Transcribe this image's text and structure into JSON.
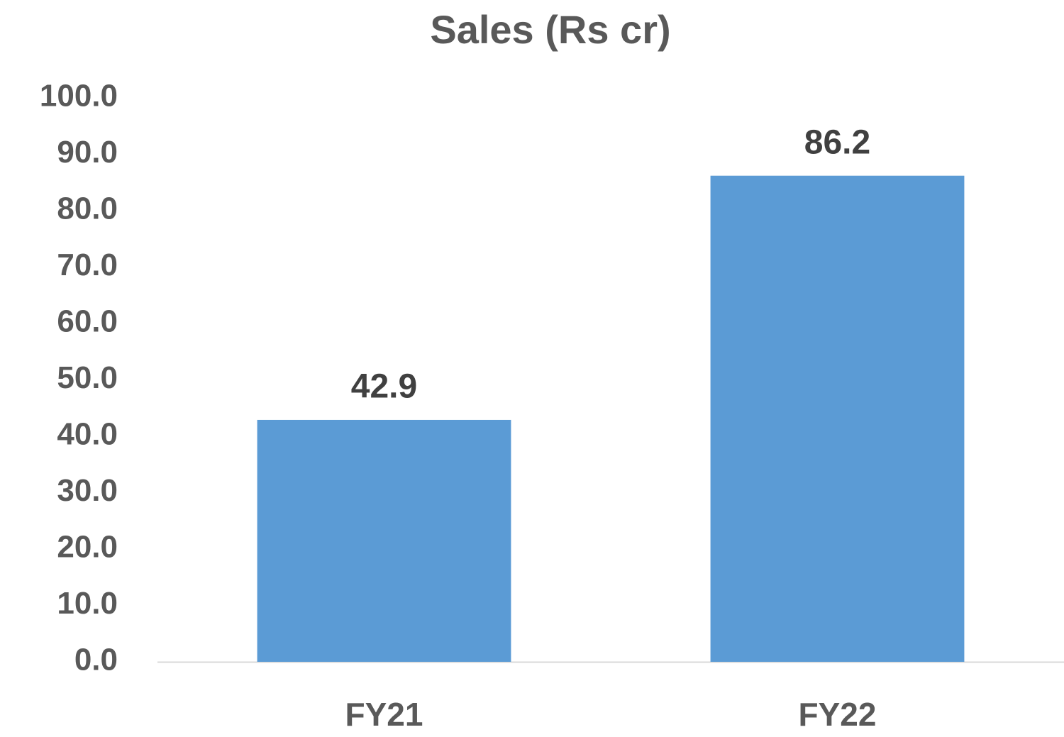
{
  "chart_data": {
    "type": "bar",
    "title": "Sales (Rs cr)",
    "categories": [
      "FY21",
      "FY22"
    ],
    "values": [
      42.9,
      86.2
    ],
    "color": "#5b9bd5",
    "ylim": [
      0,
      100
    ],
    "yticks": [
      {
        "value": 0,
        "label": "0.0"
      },
      {
        "value": 10,
        "label": "10.0"
      },
      {
        "value": 20,
        "label": "20.0"
      },
      {
        "value": 30,
        "label": "30.0"
      },
      {
        "value": 40,
        "label": "40.0"
      },
      {
        "value": 50,
        "label": "50.0"
      },
      {
        "value": 60,
        "label": "60.0"
      },
      {
        "value": 70,
        "label": "70.0"
      },
      {
        "value": 80,
        "label": "80.0"
      },
      {
        "value": 90,
        "label": "90.0"
      },
      {
        "value": 100,
        "label": "100.0"
      }
    ],
    "grid": false
  }
}
